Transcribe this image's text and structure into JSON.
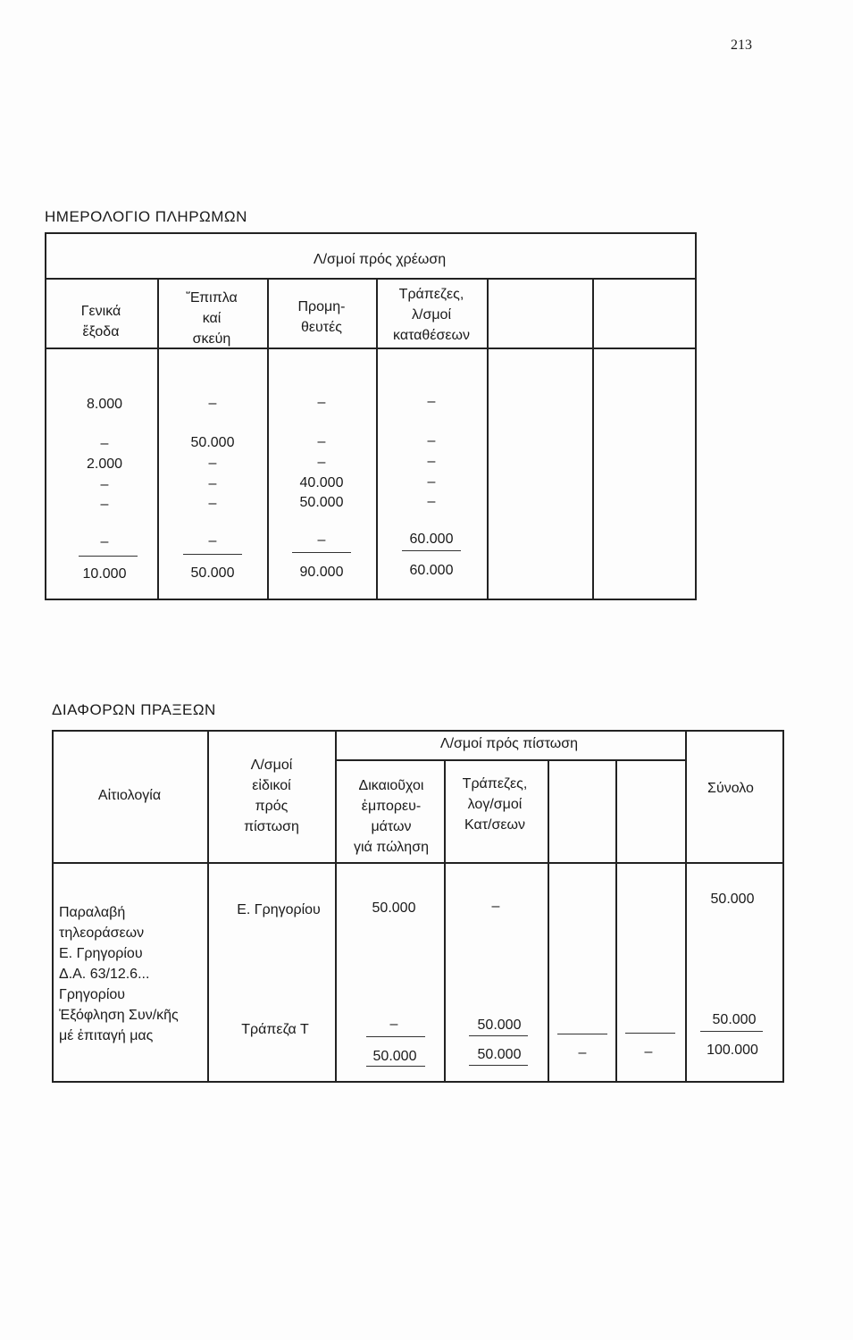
{
  "page_number": "213",
  "payments_journal": {
    "title": "ΗΜΕΡΟΛΟΓΙΟ ΠΛΗΡΩΜΩΝ",
    "group_header": "Λ/σμοί πρός χρέωση",
    "columns": [
      "Γενικά\nἔξοδα",
      "Ἔπιπλα\nκαί\nσκεύη",
      "Προμη-\nθευτές",
      "Τράπεζες,\nλ/σμοί\nκαταθέσεων",
      "",
      ""
    ],
    "rows": [
      [
        "8.000",
        "–",
        "–",
        "–"
      ],
      [
        "–",
        "50.000",
        "–",
        "–"
      ],
      [
        "2.000",
        "–",
        "–",
        "–"
      ],
      [
        "–",
        "–",
        "40.000",
        "–"
      ],
      [
        "–",
        "–",
        "50.000",
        "–"
      ],
      [
        "–",
        "–",
        "–",
        "60.000"
      ]
    ],
    "totals": [
      "10.000",
      "50.000",
      "90.000",
      "60.000"
    ]
  },
  "misc_journal": {
    "title": "ΔΙΑΦΟΡΩΝ ΠΡΑΞΕΩΝ",
    "col_reason": "Αἰτιολογία",
    "col_special": "Λ/σμοί\nεἰδικοί\nπρός\nπίστωση",
    "group_header": "Λ/σμοί πρός πίστωση",
    "sub_columns": [
      "Δικαιοῦχοι\nἐμπορευ-\nμάτων\nγιά πώληση",
      "Τράπεζες,\nλογ/σμοί\nΚατ/σεων",
      "",
      ""
    ],
    "col_total": "Σύνολο",
    "entries": [
      {
        "reason": "Παραλαβή\nτηλεοράσεων\nΕ. Γρηγορίου\nΔ.Α. 63/12.6...\nΓρηγορίου",
        "special": "Ε. Γρηγορίου",
        "values": [
          "50.000",
          "–"
        ],
        "total": "50.000"
      },
      {
        "reason": "Ἐξόφληση Συν/κῆς\nμέ ἐπιταγή μας",
        "special": "Τράπεζα Τ",
        "values": [
          "–",
          "50.000"
        ],
        "total": "50.000"
      }
    ],
    "totals": [
      "50.000",
      "50.000",
      "–",
      "–"
    ],
    "grand_total": "100.000"
  }
}
